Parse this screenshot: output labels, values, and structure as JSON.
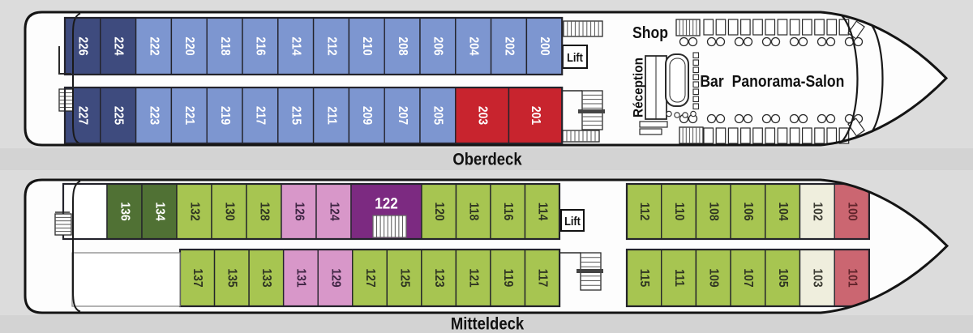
{
  "page": {
    "background": "#dcdcdc",
    "label_band_color": "#d3d3d3"
  },
  "colors": {
    "dark-blue": "#3e4b7e",
    "light-blue": "#7d96d0",
    "red": "#c8242e",
    "dark-green": "#507134",
    "green": "#a7c551",
    "pink": "#d897c9",
    "purple": "#7c2a81",
    "cream": "#efeedd",
    "salmon": "#cb6671",
    "white": "#ffffff"
  },
  "text_colors": {
    "dark-blue": "#ffffff",
    "light-blue": "#ffffff",
    "red": "#ffffff",
    "dark-green": "#ffffff",
    "green": "#2f3522",
    "pink": "#3f2544",
    "purple": "#ffffff",
    "cream": "#3b3b32",
    "salmon": "#61242b",
    "white": "#333333"
  },
  "decks": [
    {
      "name": "Oberdeck",
      "lift": "Lift",
      "areas": {
        "shop": "Shop",
        "reception": "Réception",
        "bar": "Bar",
        "panorama_salon": "Panorama-Salon"
      },
      "rows": {
        "top": [
          {
            "number": "226",
            "category": "dark-blue"
          },
          {
            "number": "224",
            "category": "dark-blue"
          },
          {
            "number": "222",
            "category": "light-blue"
          },
          {
            "number": "220",
            "category": "light-blue"
          },
          {
            "number": "218",
            "category": "light-blue"
          },
          {
            "number": "216",
            "category": "light-blue"
          },
          {
            "number": "214",
            "category": "light-blue"
          },
          {
            "number": "212",
            "category": "light-blue"
          },
          {
            "number": "210",
            "category": "light-blue"
          },
          {
            "number": "208",
            "category": "light-blue"
          },
          {
            "number": "206",
            "category": "light-blue"
          },
          {
            "number": "204",
            "category": "light-blue"
          },
          {
            "number": "202",
            "category": "light-blue"
          },
          {
            "number": "200",
            "category": "light-blue"
          }
        ],
        "bottom": [
          {
            "number": "227",
            "category": "dark-blue"
          },
          {
            "number": "225",
            "category": "dark-blue"
          },
          {
            "number": "223",
            "category": "light-blue"
          },
          {
            "number": "221",
            "category": "light-blue"
          },
          {
            "number": "219",
            "category": "light-blue"
          },
          {
            "number": "217",
            "category": "light-blue"
          },
          {
            "number": "215",
            "category": "light-blue"
          },
          {
            "number": "211",
            "category": "light-blue"
          },
          {
            "number": "209",
            "category": "light-blue"
          },
          {
            "number": "207",
            "category": "light-blue"
          },
          {
            "number": "205",
            "category": "light-blue"
          },
          {
            "number": "203",
            "category": "red"
          },
          {
            "number": "201",
            "category": "red"
          }
        ]
      }
    },
    {
      "name": "Mitteldeck",
      "lift": "Lift",
      "rows": {
        "top": [
          {
            "number": "",
            "category": "white"
          },
          {
            "number": "136",
            "category": "dark-green"
          },
          {
            "number": "134",
            "category": "dark-green"
          },
          {
            "number": "132",
            "category": "green"
          },
          {
            "number": "130",
            "category": "green"
          },
          {
            "number": "128",
            "category": "green"
          },
          {
            "number": "126",
            "category": "pink"
          },
          {
            "number": "124",
            "category": "pink"
          },
          {
            "number": "122",
            "category": "purple"
          },
          {
            "number": "120",
            "category": "green"
          },
          {
            "number": "118",
            "category": "green"
          },
          {
            "number": "116",
            "category": "green"
          },
          {
            "number": "114",
            "category": "green"
          },
          {
            "number": "112",
            "category": "green"
          },
          {
            "number": "110",
            "category": "green"
          },
          {
            "number": "108",
            "category": "green"
          },
          {
            "number": "106",
            "category": "green"
          },
          {
            "number": "104",
            "category": "green"
          },
          {
            "number": "102",
            "category": "cream"
          },
          {
            "number": "100",
            "category": "salmon"
          }
        ],
        "bottom": [
          {
            "number": "137",
            "category": "green"
          },
          {
            "number": "135",
            "category": "green"
          },
          {
            "number": "133",
            "category": "green"
          },
          {
            "number": "131",
            "category": "pink"
          },
          {
            "number": "129",
            "category": "pink"
          },
          {
            "number": "127",
            "category": "green"
          },
          {
            "number": "125",
            "category": "green"
          },
          {
            "number": "123",
            "category": "green"
          },
          {
            "number": "121",
            "category": "green"
          },
          {
            "number": "119",
            "category": "green"
          },
          {
            "number": "117",
            "category": "green"
          },
          {
            "number": "115",
            "category": "green"
          },
          {
            "number": "111",
            "category": "green"
          },
          {
            "number": "109",
            "category": "green"
          },
          {
            "number": "107",
            "category": "green"
          },
          {
            "number": "105",
            "category": "green"
          },
          {
            "number": "103",
            "category": "cream"
          },
          {
            "number": "101",
            "category": "salmon"
          }
        ]
      }
    }
  ]
}
